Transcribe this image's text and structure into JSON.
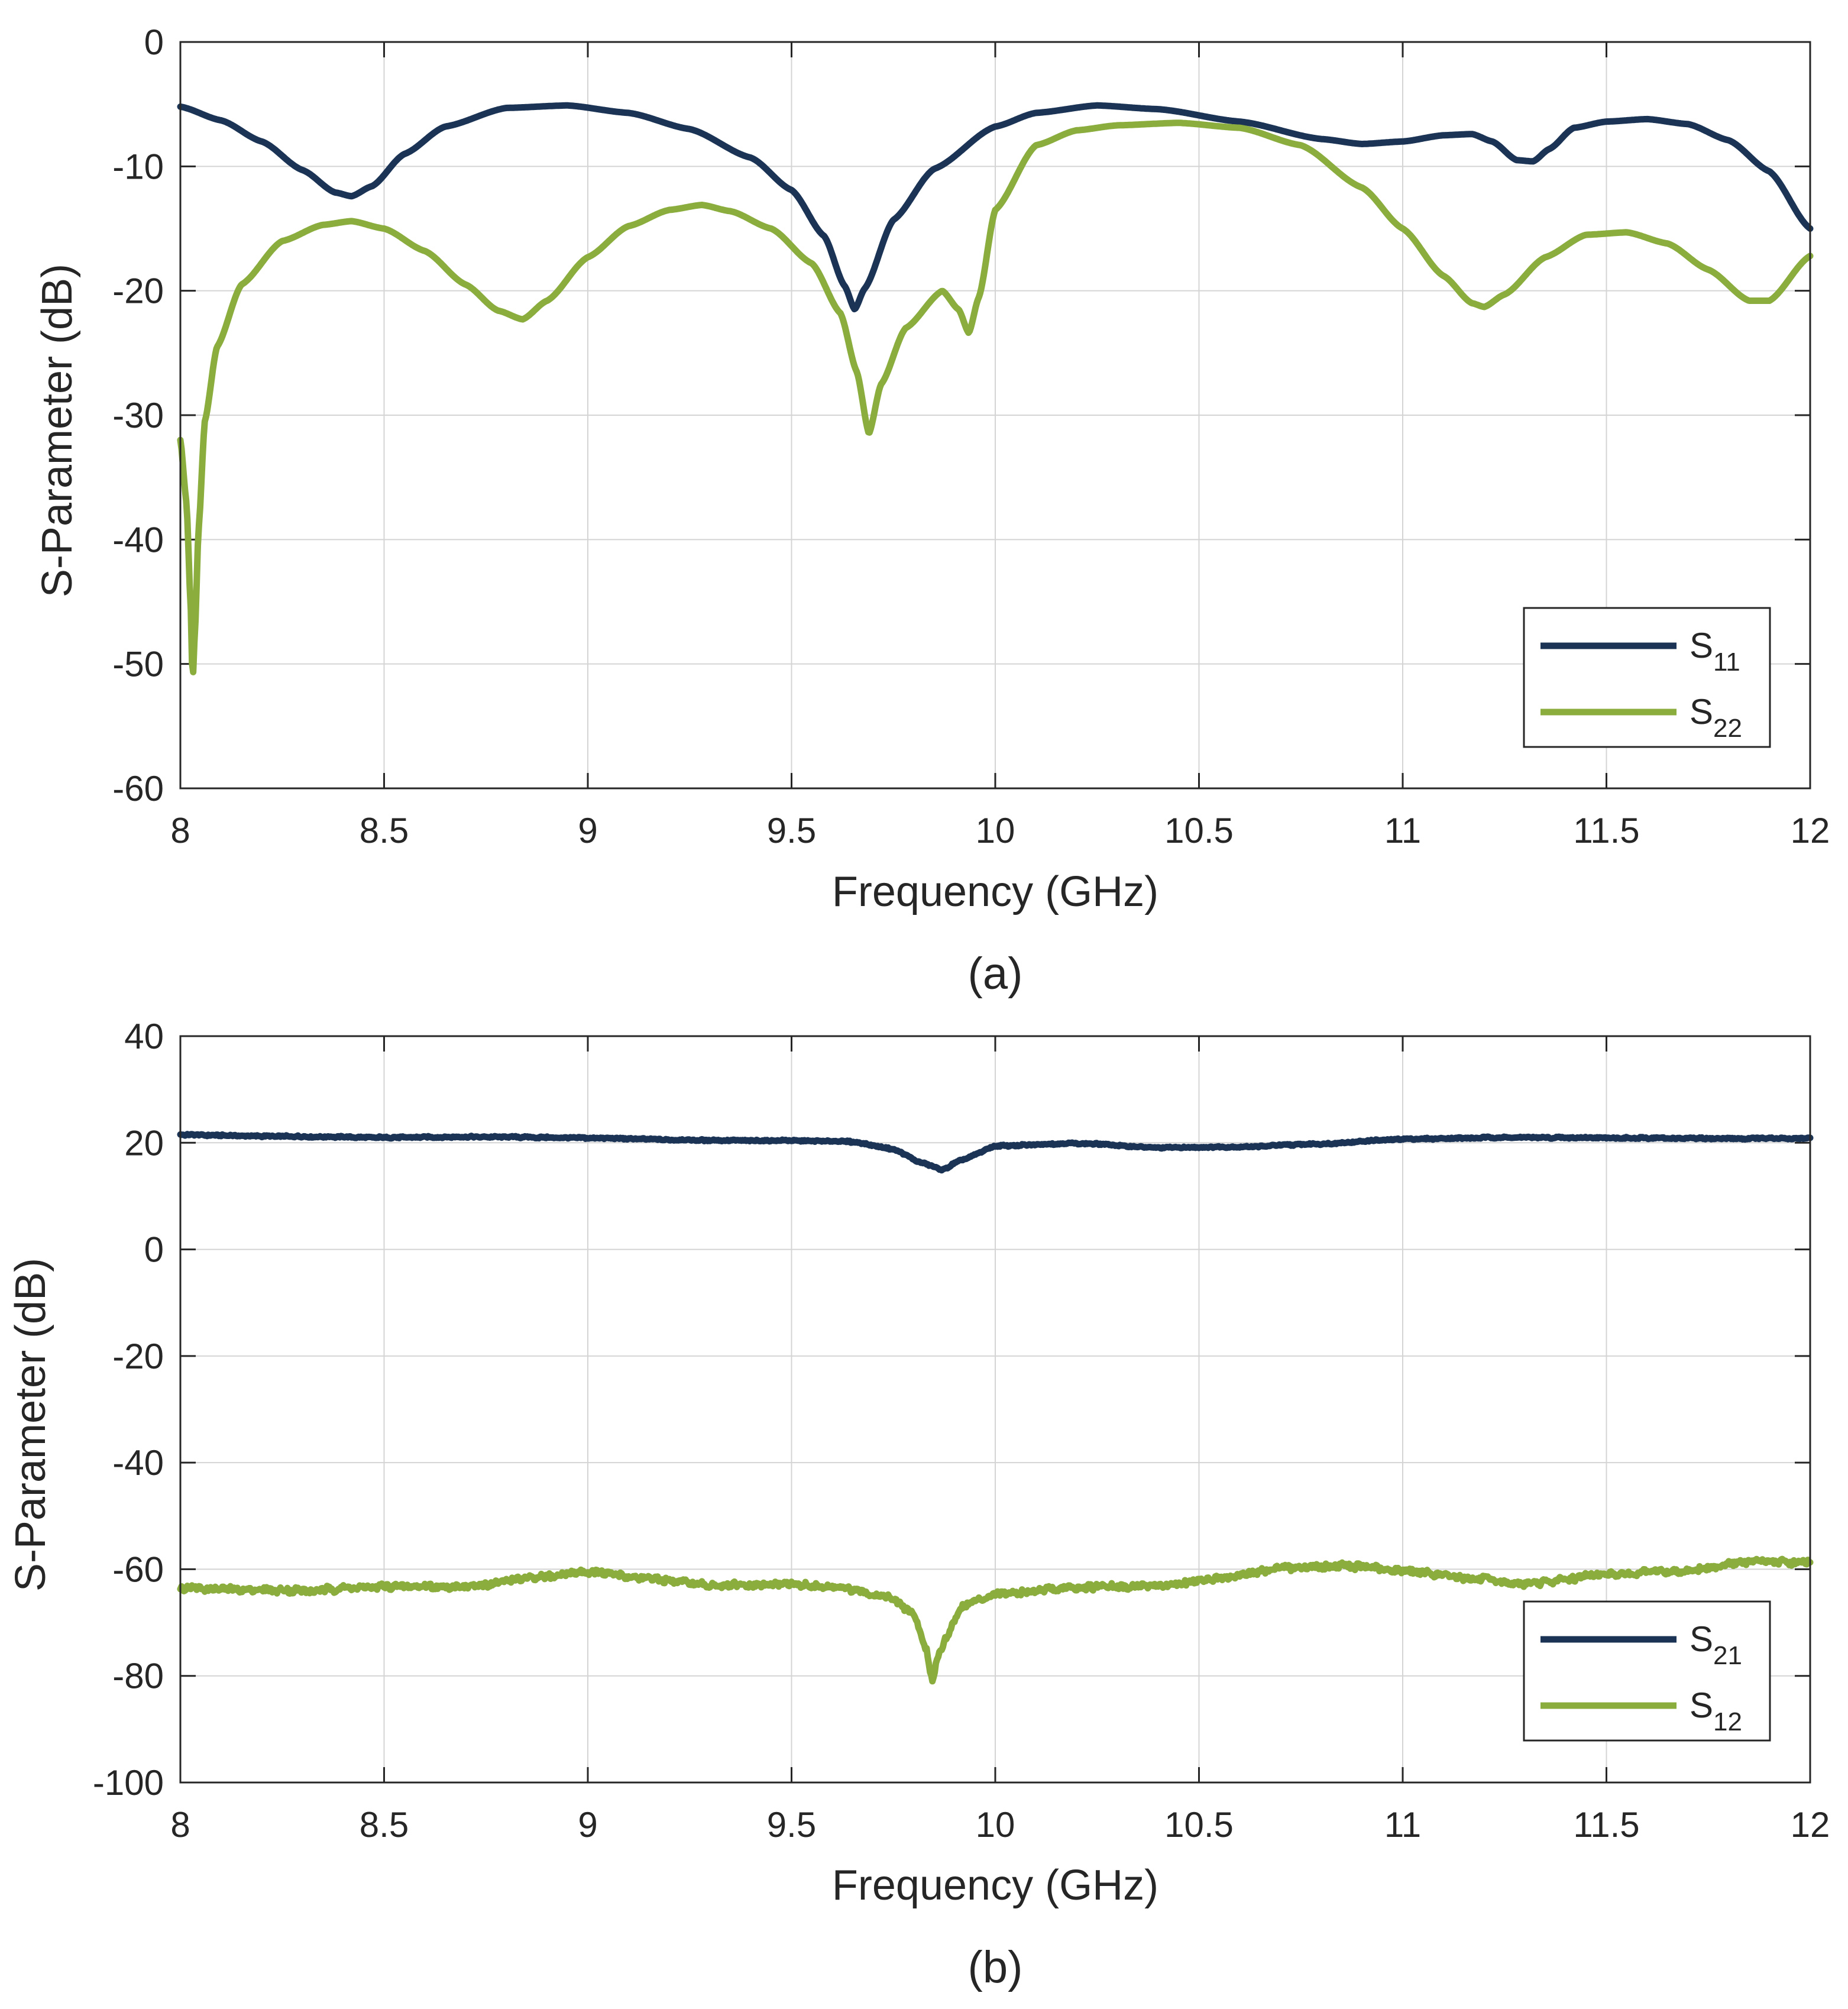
{
  "chart_data": [
    {
      "type": "line",
      "panel": "a",
      "caption": "(a)",
      "xlabel": "Frequency (GHz)",
      "ylabel": "S-Parameter (dB)",
      "xlim": [
        8,
        12
      ],
      "ylim": [
        -60,
        0
      ],
      "xticks": [
        "8",
        "8.5",
        "9",
        "9.5",
        "10",
        "10.5",
        "11",
        "11.5",
        "12"
      ],
      "yticks": [
        "0",
        "-10",
        "-20",
        "-30",
        "-40",
        "-50",
        "-60"
      ],
      "grid": true,
      "legend_position": "bottom-right",
      "series": [
        {
          "name": "S11",
          "legend_main": "S",
          "legend_sub": "11",
          "color": "#1b3456",
          "x": [
            8.0,
            8.1,
            8.2,
            8.3,
            8.38,
            8.42,
            8.47,
            8.55,
            8.65,
            8.8,
            8.95,
            9.1,
            9.25,
            9.4,
            9.5,
            9.58,
            9.63,
            9.655,
            9.68,
            9.75,
            9.85,
            10.0,
            10.1,
            10.25,
            10.4,
            10.6,
            10.8,
            10.9,
            11.0,
            11.1,
            11.17,
            11.22,
            11.28,
            11.32,
            11.36,
            11.42,
            11.5,
            11.6,
            11.7,
            11.8,
            11.9,
            12.0
          ],
          "y": [
            -5.2,
            -6.3,
            -8.0,
            -10.3,
            -12.1,
            -12.4,
            -11.6,
            -9.0,
            -6.8,
            -5.3,
            -5.1,
            -5.7,
            -7.0,
            -9.3,
            -11.9,
            -15.6,
            -19.6,
            -21.5,
            -19.8,
            -14.3,
            -10.2,
            -6.8,
            -5.7,
            -5.1,
            -5.4,
            -6.4,
            -7.8,
            -8.2,
            -8.0,
            -7.5,
            -7.4,
            -8.0,
            -9.5,
            -9.6,
            -8.6,
            -6.9,
            -6.4,
            -6.2,
            -6.6,
            -7.9,
            -10.4,
            -15.0
          ]
        },
        {
          "name": "S22",
          "legend_main": "S",
          "legend_sub": "22",
          "color": "#8aad3e",
          "x": [
            8.0,
            8.015,
            8.025,
            8.03,
            8.035,
            8.045,
            8.06,
            8.09,
            8.15,
            8.25,
            8.35,
            8.42,
            8.5,
            8.6,
            8.7,
            8.78,
            8.84,
            8.9,
            9.0,
            9.1,
            9.2,
            9.28,
            9.35,
            9.45,
            9.55,
            9.62,
            9.66,
            9.69,
            9.72,
            9.78,
            9.87,
            9.91,
            9.935,
            9.96,
            10.0,
            10.1,
            10.2,
            10.3,
            10.45,
            10.6,
            10.75,
            10.9,
            11.0,
            11.1,
            11.17,
            11.2,
            11.25,
            11.35,
            11.45,
            11.55,
            11.65,
            11.75,
            11.85,
            11.9,
            12.0
          ],
          "y": [
            -32.0,
            -37.0,
            -45.0,
            -51.5,
            -48.0,
            -39.0,
            -30.5,
            -24.5,
            -19.5,
            -16.0,
            -14.7,
            -14.4,
            -15.0,
            -16.8,
            -19.5,
            -21.6,
            -22.3,
            -20.8,
            -17.3,
            -14.8,
            -13.5,
            -13.1,
            -13.6,
            -15.0,
            -17.8,
            -21.8,
            -26.5,
            -31.5,
            -27.5,
            -23.0,
            -20.0,
            -21.5,
            -23.4,
            -20.5,
            -13.5,
            -8.3,
            -7.1,
            -6.7,
            -6.5,
            -6.9,
            -8.3,
            -11.7,
            -15.0,
            -18.8,
            -21.0,
            -21.3,
            -20.3,
            -17.3,
            -15.5,
            -15.3,
            -16.2,
            -18.3,
            -20.8,
            -20.8,
            -17.2
          ]
        }
      ]
    },
    {
      "type": "line",
      "panel": "b",
      "caption": "(b)",
      "xlabel": "Frequency (GHz)",
      "ylabel": "S-Parameter (dB)",
      "xlim": [
        8,
        12
      ],
      "ylim": [
        -100,
        40
      ],
      "xticks": [
        "8",
        "8.5",
        "9",
        "9.5",
        "10",
        "10.5",
        "11",
        "11.5",
        "12"
      ],
      "yticks": [
        "40",
        "20",
        "0",
        "-20",
        "-40",
        "-60",
        "-80",
        "-100"
      ],
      "grid": true,
      "legend_position": "bottom-right",
      "series": [
        {
          "name": "S21",
          "legend_main": "S",
          "legend_sub": "21",
          "color": "#1b3456",
          "x": [
            8.0,
            8.25,
            8.5,
            8.75,
            9.0,
            9.25,
            9.5,
            9.65,
            9.75,
            9.82,
            9.87,
            9.92,
            10.0,
            10.2,
            10.4,
            10.6,
            10.8,
            11.0,
            11.25,
            11.5,
            11.75,
            12.0
          ],
          "y": [
            21.5,
            21.2,
            21.0,
            21.1,
            20.9,
            20.5,
            20.4,
            20.2,
            18.8,
            16.2,
            15.0,
            16.8,
            19.4,
            19.9,
            19.1,
            19.2,
            19.8,
            20.7,
            21.0,
            20.9,
            20.8,
            20.8
          ],
          "noise": 0.2
        },
        {
          "name": "S12",
          "legend_main": "S",
          "legend_sub": "12",
          "color": "#8aad3e",
          "x": [
            8.0,
            8.15,
            8.3,
            8.5,
            8.7,
            8.85,
            9.0,
            9.15,
            9.3,
            9.5,
            9.65,
            9.75,
            9.8,
            9.83,
            9.845,
            9.86,
            9.88,
            9.92,
            10.0,
            10.2,
            10.4,
            10.55,
            10.7,
            10.85,
            11.0,
            11.15,
            11.3,
            11.5,
            11.7,
            11.85,
            12.0
          ],
          "y": [
            -63.5,
            -63.8,
            -64.0,
            -63.2,
            -63.3,
            -61.8,
            -60.5,
            -61.8,
            -63.0,
            -62.8,
            -63.8,
            -65.5,
            -68.5,
            -75.0,
            -81.0,
            -76.0,
            -72.5,
            -67.0,
            -64.5,
            -63.5,
            -63.0,
            -61.8,
            -59.8,
            -59.3,
            -60.2,
            -61.5,
            -62.8,
            -61.0,
            -60.3,
            -58.5,
            -58.8
          ],
          "noise": 0.7
        }
      ]
    }
  ]
}
